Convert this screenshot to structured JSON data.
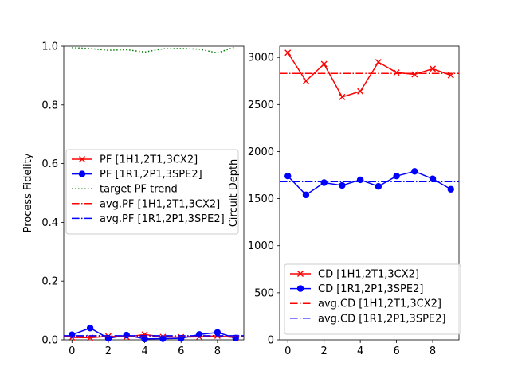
{
  "chart_data": [
    {
      "type": "line",
      "ylabel": "Process Fidelity",
      "xlabel": "",
      "xlim": [
        -0.45,
        9.45
      ],
      "ylim": [
        0,
        1.0
      ],
      "xticks": [
        0,
        2,
        4,
        6,
        8
      ],
      "yticks": [
        0.0,
        0.2,
        0.4,
        0.6,
        0.8,
        1.0
      ],
      "ytick_labels": [
        "0.0",
        "0.2",
        "0.4",
        "0.6",
        "0.8",
        "1.0"
      ],
      "legend_placement": "center-left",
      "x": [
        0,
        1,
        2,
        3,
        4,
        5,
        6,
        7,
        8,
        9
      ],
      "series": [
        {
          "name": "PF [1H1,2T1,3CX2]",
          "style": "line-x",
          "color": "#ff0000",
          "values": [
            0.008,
            0.007,
            0.012,
            0.01,
            0.018,
            0.01,
            0.009,
            0.01,
            0.014,
            0.007
          ]
        },
        {
          "name": "PF [1R1,2P1,3SPE2]",
          "style": "line-dot",
          "color": "#0000ff",
          "values": [
            0.017,
            0.04,
            0.005,
            0.016,
            0.003,
            0.004,
            0.005,
            0.018,
            0.025,
            0.006
          ]
        },
        {
          "name": "target PF trend",
          "style": "dotted",
          "color": "#008000",
          "values": [
            0.995,
            0.992,
            0.986,
            0.988,
            0.98,
            0.991,
            0.992,
            0.99,
            0.977,
            0.998
          ]
        },
        {
          "name": "avg.PF [1H1,2T1,3CX2]",
          "style": "dashdot-h",
          "color": "#ff0000",
          "values": [
            0.011,
            0.011,
            0.011,
            0.011,
            0.011,
            0.011,
            0.011,
            0.011,
            0.011,
            0.011
          ]
        },
        {
          "name": "avg.PF [1R1,2P1,3SPE2]",
          "style": "dashdot-h",
          "color": "#0000ff",
          "values": [
            0.014,
            0.014,
            0.014,
            0.014,
            0.014,
            0.014,
            0.014,
            0.014,
            0.014,
            0.014
          ]
        }
      ]
    },
    {
      "type": "line",
      "ylabel": "Circuit Depth",
      "xlabel": "",
      "xlim": [
        -0.45,
        9.45
      ],
      "ylim": [
        0,
        3120
      ],
      "xticks": [
        0,
        2,
        4,
        6,
        8
      ],
      "yticks": [
        0,
        500,
        1000,
        1500,
        2000,
        2500,
        3000
      ],
      "ytick_labels": [
        "0",
        "500",
        "1000",
        "1500",
        "2000",
        "2500",
        "3000"
      ],
      "legend_placement": "lower-center",
      "x": [
        0,
        1,
        2,
        3,
        4,
        5,
        6,
        7,
        8,
        9
      ],
      "series": [
        {
          "name": "CD [1H1,2T1,3CX2]",
          "style": "line-x",
          "color": "#ff0000",
          "values": [
            3050,
            2750,
            2930,
            2580,
            2640,
            2950,
            2840,
            2820,
            2880,
            2810
          ]
        },
        {
          "name": "CD [1R1,2P1,3SPE2]",
          "style": "line-dot",
          "color": "#0000ff",
          "values": [
            1740,
            1540,
            1670,
            1640,
            1700,
            1630,
            1740,
            1790,
            1710,
            1600
          ]
        },
        {
          "name": "avg.CD [1H1,2T1,3CX2]",
          "style": "dashdot-h",
          "color": "#ff0000",
          "values": [
            2830,
            2830,
            2830,
            2830,
            2830,
            2830,
            2830,
            2830,
            2830,
            2830
          ]
        },
        {
          "name": "avg.CD [1R1,2P1,3SPE2]",
          "style": "dashdot-h",
          "color": "#0000ff",
          "values": [
            1680,
            1680,
            1680,
            1680,
            1680,
            1680,
            1680,
            1680,
            1680,
            1680
          ]
        }
      ]
    }
  ]
}
